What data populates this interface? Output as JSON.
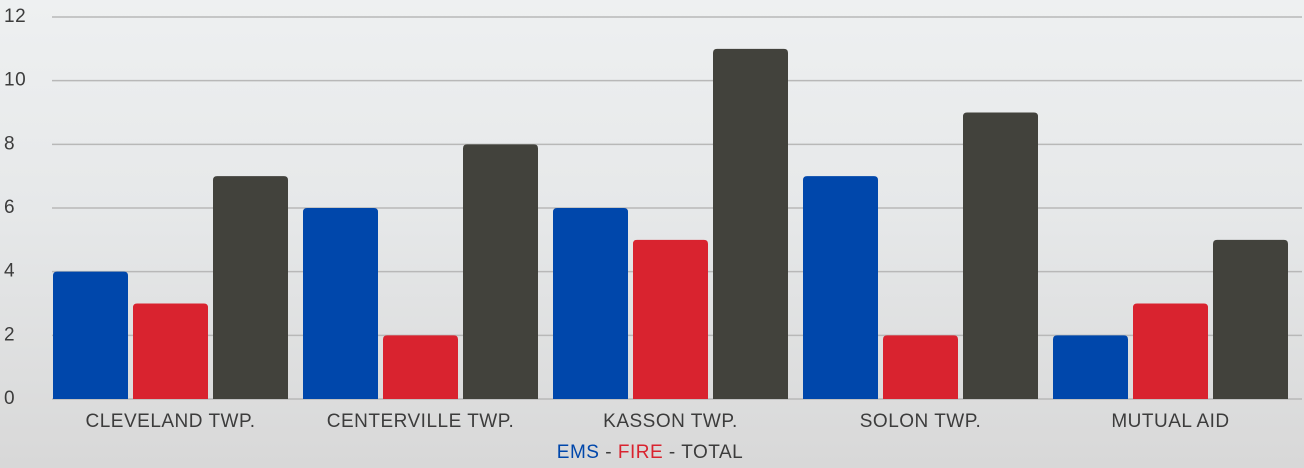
{
  "chart_data": {
    "type": "bar",
    "categories": [
      "CLEVELAND TWP.",
      "CENTERVILLE TWP.",
      "KASSON TWP.",
      "SOLON TWP.",
      "MUTUAL AID"
    ],
    "series": [
      {
        "name": "EMS",
        "color": "#0047ab",
        "values": [
          4,
          6,
          6,
          7,
          2
        ]
      },
      {
        "name": "FIRE",
        "color": "#d9232f",
        "values": [
          3,
          2,
          5,
          2,
          3
        ]
      },
      {
        "name": "TOTAL",
        "color": "#42423c",
        "values": [
          7,
          8,
          11,
          9,
          5
        ]
      }
    ],
    "legend_separator": " - ",
    "ylim": [
      0,
      12
    ],
    "yticks": [
      0,
      2,
      4,
      6,
      8,
      10,
      12
    ],
    "grid": true
  }
}
